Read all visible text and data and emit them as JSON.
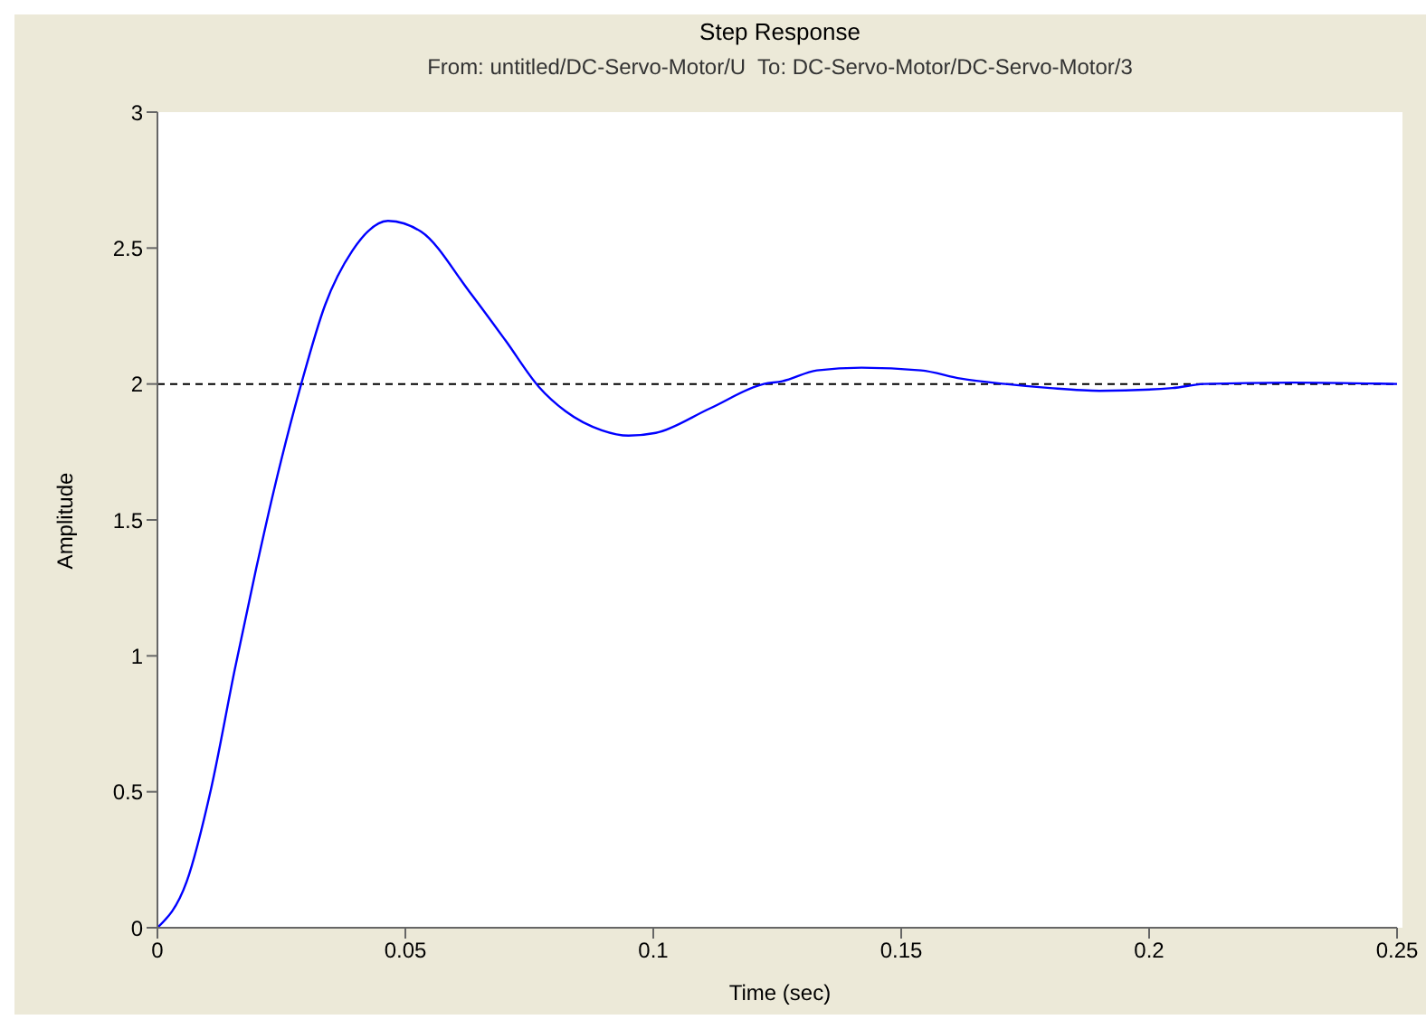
{
  "chart_data": {
    "type": "line",
    "title": "Step Response",
    "subtitle": "From: untitled/DC-Servo-Motor/U  To: DC-Servo-Motor/DC-Servo-Motor/3",
    "xlabel": "Time (sec)",
    "ylabel": "Amplitude",
    "x": [
      0,
      0.0059,
      0.0108,
      0.0156,
      0.0199,
      0.0235,
      0.029,
      0.0338,
      0.0393,
      0.0465,
      0.0532,
      0.0629,
      0.0702,
      0.0769,
      0.0823,
      0.0896,
      0.095,
      0.1005,
      0.1114,
      0.1223,
      0.126,
      0.133,
      0.142,
      0.154,
      0.162,
      0.171,
      0.18,
      0.19,
      0.2047,
      0.211,
      0.229,
      0.25
    ],
    "series": [
      {
        "color": "#0000ff",
        "values": [
          0,
          0.17,
          0.51,
          0.95,
          1.32,
          1.61,
          2.0,
          2.29,
          2.49,
          2.6,
          2.56,
          2.34,
          2.16,
          1.99,
          1.9,
          1.83,
          1.81,
          1.82,
          1.91,
          2.0,
          2.01,
          2.05,
          2.06,
          2.05,
          2.02,
          2.0,
          1.985,
          1.975,
          1.985,
          2.0,
          2.005,
          2.0
        ]
      }
    ],
    "xlim": [
      0,
      0.25
    ],
    "xticks": [
      0,
      0.05,
      0.1,
      0.15,
      0.2,
      0.25
    ],
    "ylim": [
      0,
      3
    ],
    "yticks": [
      0,
      0.5,
      1,
      1.5,
      2,
      2.5,
      3
    ],
    "ref_lines": [
      {
        "axis": "y",
        "value": 2,
        "color": "#000000",
        "line_style": "dashed"
      }
    ],
    "grid": false,
    "legend": false,
    "marker": "none",
    "line_style": "solid"
  }
}
